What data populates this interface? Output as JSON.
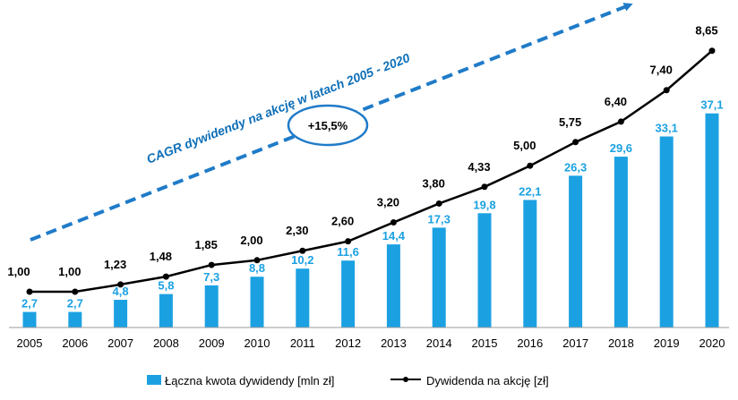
{
  "chart_data": {
    "type": "bar",
    "categories": [
      "2005",
      "2006",
      "2007",
      "2008",
      "2009",
      "2010",
      "2011",
      "2012",
      "2013",
      "2014",
      "2015",
      "2016",
      "2017",
      "2018",
      "2019",
      "2020"
    ],
    "series": [
      {
        "name": "Łączna kwota dywidendy [mln zł]",
        "type": "bar",
        "color": "#1BA1E2",
        "values": [
          2.7,
          2.7,
          4.8,
          5.8,
          7.3,
          8.8,
          10.2,
          11.6,
          14.4,
          17.3,
          19.8,
          22.1,
          26.3,
          29.6,
          33.1,
          37.1
        ],
        "labels": [
          "2,7",
          "2,7",
          "4,8",
          "5,8",
          "7,3",
          "8,8",
          "10,2",
          "11,6",
          "14,4",
          "17,3",
          "19,8",
          "22,1",
          "26,3",
          "29,6",
          "33,1",
          "37,1"
        ]
      },
      {
        "name": "Dywidenda na akcję [zł]",
        "type": "line",
        "color": "#000000",
        "values": [
          1.0,
          1.0,
          1.23,
          1.48,
          1.85,
          2.0,
          2.3,
          2.6,
          3.2,
          3.8,
          4.33,
          5.0,
          5.75,
          6.4,
          7.4,
          8.65
        ],
        "labels": [
          "1,00",
          "1,00",
          "1,23",
          "1,48",
          "1,85",
          "2,00",
          "2,30",
          "2,60",
          "3,20",
          "3,80",
          "4,33",
          "5,00",
          "5,75",
          "6,40",
          "7,40",
          "8,65"
        ]
      }
    ],
    "annotations": {
      "cagr_text": "CAGR dywidendy na akcję w latach 2005 - 2020",
      "cagr_value": "+15,5%",
      "arrow_color": "#1F7BC8"
    },
    "legend_position": "bottom",
    "grid": false
  }
}
